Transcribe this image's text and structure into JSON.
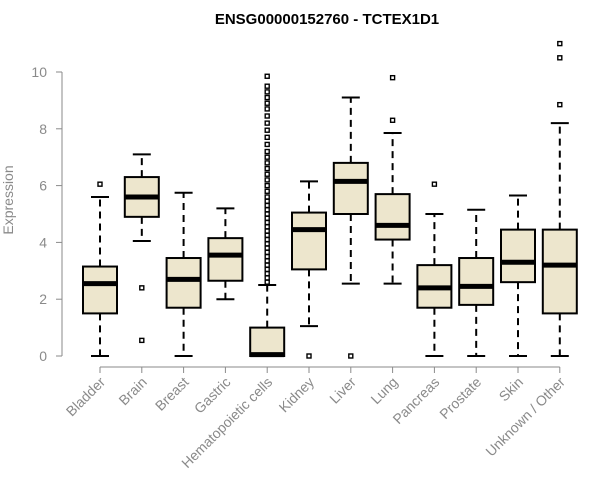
{
  "chart_data": {
    "type": "boxplot",
    "title": "ENSG00000152760 - TCTEX1D1",
    "xlabel": "",
    "ylabel": "Expression",
    "ylim": [
      0,
      11
    ],
    "yticks": [
      0,
      2,
      4,
      6,
      8,
      10
    ],
    "grid": false,
    "legend": "none",
    "box_fill": "#ede6cd",
    "stroke_color": "#000000",
    "categories": [
      "Bladder",
      "Brain",
      "Breast",
      "Gastric",
      "Hematopoietic cells",
      "Kidney",
      "Liver",
      "Lung",
      "Pancreas",
      "Prostate",
      "Skin",
      "Unknown / Other"
    ],
    "boxes": [
      {
        "label": "Bladder",
        "whisker_low": 0.0,
        "q1": 1.5,
        "median": 2.55,
        "q3": 3.15,
        "whisker_high": 5.6,
        "outliers": [
          6.05
        ]
      },
      {
        "label": "Brain",
        "whisker_low": 4.05,
        "q1": 4.9,
        "median": 5.6,
        "q3": 6.3,
        "whisker_high": 7.1,
        "outliers": [
          0.55,
          2.4
        ]
      },
      {
        "label": "Breast",
        "whisker_low": 0.0,
        "q1": 1.7,
        "median": 2.7,
        "q3": 3.45,
        "whisker_high": 5.75,
        "outliers": []
      },
      {
        "label": "Gastric",
        "whisker_low": 2.0,
        "q1": 2.65,
        "median": 3.55,
        "q3": 4.15,
        "whisker_high": 5.2,
        "outliers": []
      },
      {
        "label": "Hematopoietic cells",
        "whisker_low": 0.0,
        "q1": 0.0,
        "median": 0.05,
        "q3": 1.0,
        "whisker_high": 2.5,
        "outliers": [
          2.6,
          2.75,
          2.9,
          3.05,
          3.2,
          3.35,
          3.5,
          3.65,
          3.8,
          3.95,
          4.1,
          4.25,
          4.4,
          4.55,
          4.7,
          4.85,
          5.0,
          5.15,
          5.3,
          5.45,
          5.6,
          5.8,
          6.0,
          6.2,
          6.4,
          6.6,
          6.8,
          7.0,
          7.2,
          7.45,
          7.7,
          7.95,
          8.2,
          8.45,
          8.7,
          8.9,
          9.1,
          9.3,
          9.5,
          9.85
        ]
      },
      {
        "label": "Kidney",
        "whisker_low": 1.05,
        "q1": 3.05,
        "median": 4.45,
        "q3": 5.05,
        "whisker_high": 6.15,
        "outliers": [
          0.0
        ]
      },
      {
        "label": "Liver",
        "whisker_low": 2.55,
        "q1": 5.0,
        "median": 6.15,
        "q3": 6.8,
        "whisker_high": 9.1,
        "outliers": [
          0.0
        ]
      },
      {
        "label": "Lung",
        "whisker_low": 2.55,
        "q1": 4.1,
        "median": 4.6,
        "q3": 5.7,
        "whisker_high": 7.85,
        "outliers": [
          8.3,
          9.8
        ]
      },
      {
        "label": "Pancreas",
        "whisker_low": 0.0,
        "q1": 1.7,
        "median": 2.4,
        "q3": 3.2,
        "whisker_high": 5.0,
        "outliers": [
          6.05
        ]
      },
      {
        "label": "Prostate",
        "whisker_low": 0.0,
        "q1": 1.8,
        "median": 2.45,
        "q3": 3.45,
        "whisker_high": 5.15,
        "outliers": []
      },
      {
        "label": "Skin",
        "whisker_low": 0.0,
        "q1": 2.6,
        "median": 3.3,
        "q3": 4.45,
        "whisker_high": 5.65,
        "outliers": []
      },
      {
        "label": "Unknown / Other",
        "whisker_low": 0.0,
        "q1": 1.5,
        "median": 3.2,
        "q3": 4.45,
        "whisker_high": 8.2,
        "outliers": [
          8.85,
          10.5,
          11.0
        ]
      }
    ]
  }
}
